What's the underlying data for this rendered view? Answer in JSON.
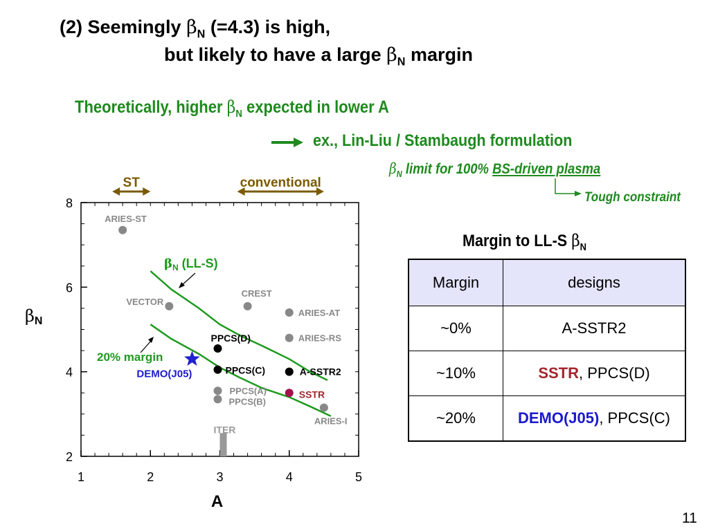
{
  "title": {
    "line1_prefix": "(2) Seemingly ",
    "beta": "β",
    "sub_n": "N",
    "line1_suffix": " (=4.3) is high,",
    "line2_prefix": "but likely to have a large ",
    "line2_suffix": " margin"
  },
  "subtitle": {
    "line1_prefix": "Theoretically, higher ",
    "line1_suffix": " expected in lower A",
    "line2": "ex., Lin-Liu / Stambaugh formulation",
    "line3_prefix": " limit for 100% ",
    "line3_underlined": "BS-driven plasma",
    "tough": "Tough constraint"
  },
  "table": {
    "title_prefix": "Margin to LL-S ",
    "headers": [
      "Margin",
      "designs"
    ],
    "rows": [
      {
        "margin": "~0%",
        "designs_plain": "A-SSTR2",
        "designs_highlight": "",
        "designs_rest": ""
      },
      {
        "margin": "~10%",
        "designs_plain": "",
        "designs_highlight": "SSTR",
        "designs_rest": ", PPCS(D)"
      },
      {
        "margin": "~20%",
        "designs_plain": "",
        "designs_highlight": "DEMO(J05)",
        "designs_rest": ", PPCS(C)"
      }
    ]
  },
  "page_number": "11",
  "chart_data": {
    "type": "scatter",
    "xlabel": "A",
    "ylabel": "βN",
    "xlim": [
      1,
      5
    ],
    "ylim": [
      2,
      8
    ],
    "x_ticks": [
      "1",
      "2",
      "3",
      "4",
      "5"
    ],
    "y_ticks": [
      "2",
      "4",
      "6",
      "8"
    ],
    "regions": [
      {
        "label": "ST",
        "x_from": 1.45,
        "x_to": 2.0
      },
      {
        "label": "conventional",
        "x_from": 3.25,
        "x_to": 4.5
      }
    ],
    "curves": [
      {
        "label": "βN (LL-S)",
        "color": "#1e9a1e",
        "dash": false,
        "points": [
          [
            2.0,
            6.38
          ],
          [
            2.3,
            5.95
          ],
          [
            2.7,
            5.5
          ],
          [
            3.0,
            5.12
          ],
          [
            3.3,
            4.85
          ],
          [
            3.6,
            4.62
          ],
          [
            4.0,
            4.3
          ],
          [
            4.3,
            4.0
          ],
          [
            4.55,
            3.8
          ]
        ]
      },
      {
        "label": "20% margin",
        "color": "#1e9a1e",
        "dash": false,
        "points": [
          [
            2.0,
            5.12
          ],
          [
            2.3,
            4.78
          ],
          [
            2.7,
            4.42
          ],
          [
            3.0,
            4.1
          ],
          [
            3.3,
            3.85
          ],
          [
            3.6,
            3.62
          ],
          [
            4.0,
            3.4
          ],
          [
            4.3,
            3.18
          ],
          [
            4.6,
            2.95
          ]
        ]
      }
    ],
    "points": [
      {
        "label": "ARIES-ST",
        "x": 1.6,
        "y": 7.35,
        "color": "#888888",
        "marker": "circle"
      },
      {
        "label": "VECTOR",
        "x": 2.27,
        "y": 5.55,
        "color": "#888888",
        "marker": "circle"
      },
      {
        "label": "CREST",
        "x": 3.4,
        "y": 5.55,
        "color": "#888888",
        "marker": "circle"
      },
      {
        "label": "ARIES-AT",
        "x": 4.0,
        "y": 5.4,
        "color": "#888888",
        "marker": "circle"
      },
      {
        "label": "ARIES-RS",
        "x": 4.0,
        "y": 4.8,
        "color": "#888888",
        "marker": "circle"
      },
      {
        "label": "PPCS(D)",
        "x": 2.97,
        "y": 4.55,
        "color": "#000000",
        "marker": "circle"
      },
      {
        "label": "PPCS(C)",
        "x": 2.97,
        "y": 4.05,
        "color": "#000000",
        "marker": "circle"
      },
      {
        "label": "A-SSTR2",
        "x": 4.0,
        "y": 4.0,
        "color": "#000000",
        "marker": "circle"
      },
      {
        "label": "DEMO(J05)",
        "x": 2.6,
        "y": 4.3,
        "color": "#2222cc",
        "marker": "star"
      },
      {
        "label": "SSTR",
        "x": 4.0,
        "y": 3.5,
        "color": "#a3124a",
        "marker": "circle"
      },
      {
        "label": "PPCS(A)",
        "x": 2.97,
        "y": 3.55,
        "color": "#888888",
        "marker": "circle"
      },
      {
        "label": "PPCS(B)",
        "x": 2.97,
        "y": 3.35,
        "color": "#888888",
        "marker": "circle"
      },
      {
        "label": "ARIES-I",
        "x": 4.5,
        "y": 3.15,
        "color": "#888888",
        "marker": "circle"
      },
      {
        "label": "ITER",
        "x": 3.05,
        "y": 2.25,
        "color": "#999999",
        "marker": "bar"
      }
    ]
  }
}
